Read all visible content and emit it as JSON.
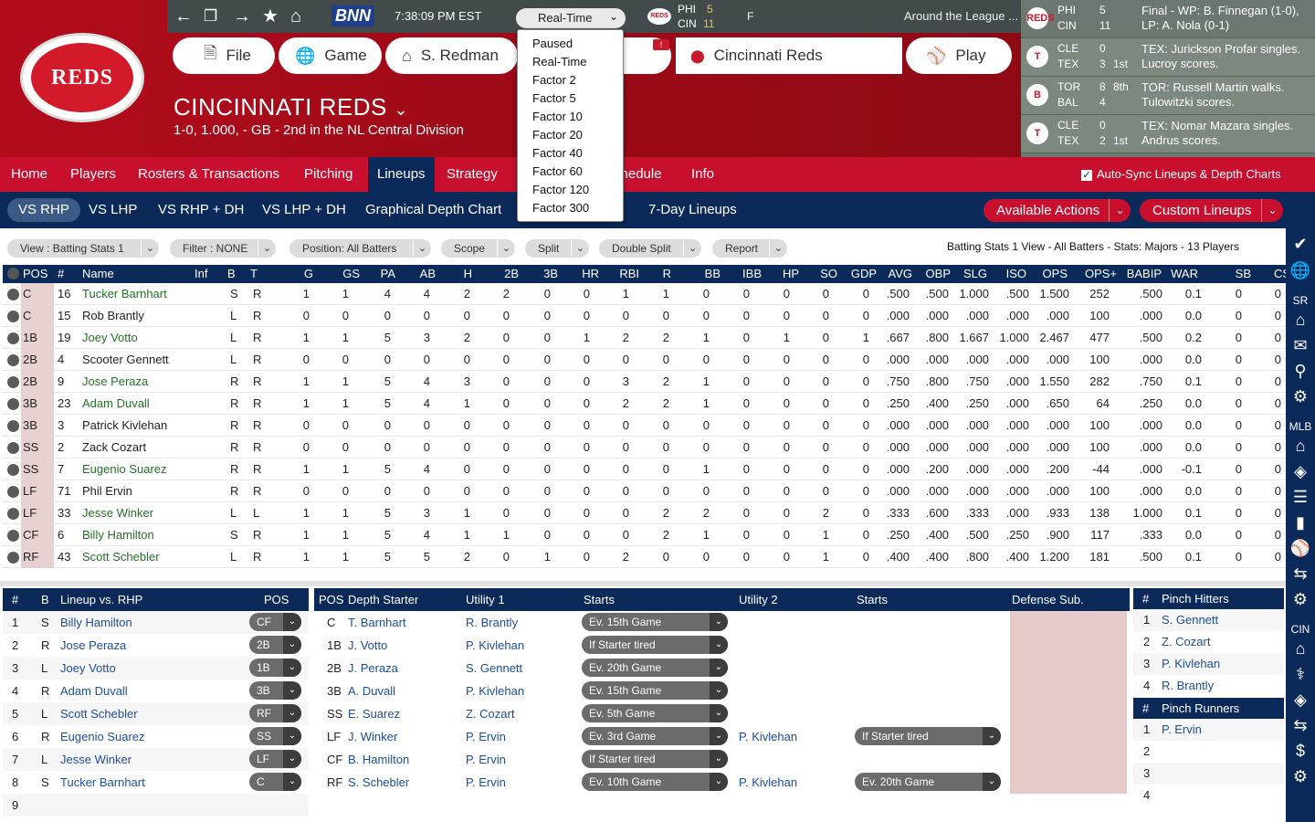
{
  "header": {
    "bnn": "BNN",
    "clock": "7:38:09  PM  EST",
    "speed": {
      "selected": "Real-Time",
      "options": [
        "Paused",
        "Real-Time",
        "Factor 2",
        "Factor 5",
        "Factor 10",
        "Factor 20",
        "Factor 40",
        "Factor 60",
        "Factor 120",
        "Factor 300"
      ]
    },
    "mini_score": {
      "team1": "PHI",
      "score1": "5",
      "team2": "CIN",
      "score2": "11",
      "status": "F"
    },
    "around": "Around the League ...",
    "team_logo": "REDS",
    "buttons": {
      "file": "File",
      "game": "Game",
      "manager": "S. Redman",
      "team": "Cincinnati Reds",
      "play": "Play"
    },
    "badge": "!",
    "team_title": "CINCINNATI REDS",
    "team_sub": "1-0, 1.000, - GB - 2nd in the NL Central Division"
  },
  "scores": [
    {
      "logo": "REDS",
      "t1": "PHI",
      "s1": "5",
      "t2": "CIN",
      "s2": "11",
      "inning": "",
      "text": "Final - WP: B. Finnegan (1-0), LP: A. Nola (0-1)"
    },
    {
      "logo": "T",
      "t1": "CLE",
      "s1": "0",
      "t2": "TEX",
      "s2": "3",
      "inning": "1st",
      "text": "TEX: Jurickson Profar singles. Lucroy scores."
    },
    {
      "logo": "B",
      "t1": "TOR",
      "s1": "8",
      "t2": "BAL",
      "s2": "4",
      "inning": "8th",
      "text": "TOR: Russell Martin walks. Tulowitzki scores."
    },
    {
      "logo": "T",
      "t1": "CLE",
      "s1": "0",
      "t2": "TEX",
      "s2": "2",
      "inning": "1st",
      "text": "TEX: Nomar Mazara singles. Andrus scores."
    }
  ],
  "mainnav": {
    "items": [
      "Home",
      "Players",
      "Rosters & Transactions",
      "Pitching",
      "Lineups",
      "Strategy",
      "Schedule",
      "Info"
    ],
    "autosync": "Auto-Sync Lineups & Depth Charts"
  },
  "subnav": {
    "items": [
      "VS RHP",
      "VS LHP",
      "VS RHP + DH",
      "VS LHP + DH",
      "Graphical Depth Chart",
      "7-Day Lineups"
    ],
    "actions": "Available Actions",
    "custom": "Custom Lineups"
  },
  "filters": {
    "view": "View : Batting Stats 1",
    "filter": "Filter : NONE",
    "position": "Position: All Batters",
    "scope": "Scope",
    "split": "Split",
    "double": "Double Split",
    "report": "Report",
    "desc": "Batting Stats 1 View - All Batters - Stats: Majors - 13 Players"
  },
  "grid": {
    "headers": [
      "POS",
      "#",
      "Name",
      "Inf",
      "B",
      "T",
      "G",
      "GS",
      "PA",
      "AB",
      "H",
      "2B",
      "3B",
      "HR",
      "RBI",
      "R",
      "BB",
      "IBB",
      "HP",
      "SO",
      "GDP",
      "AVG",
      "OBP",
      "SLG",
      "ISO",
      "OPS",
      "OPS+",
      "BABIP",
      "WAR",
      "SB",
      "CS"
    ],
    "rows": [
      [
        "C",
        "16",
        "Tucker Barnhart",
        "",
        "S",
        "R",
        "1",
        "1",
        "4",
        "4",
        "2",
        "2",
        "0",
        "0",
        "1",
        "1",
        "0",
        "0",
        "0",
        "0",
        "0",
        ".500",
        ".500",
        "1.000",
        ".500",
        "1.500",
        "252",
        ".500",
        "0.1",
        "0",
        "0"
      ],
      [
        "C",
        "15",
        "Rob Brantly",
        "",
        "L",
        "R",
        "0",
        "0",
        "0",
        "0",
        "0",
        "0",
        "0",
        "0",
        "0",
        "0",
        "0",
        "0",
        "0",
        "0",
        "0",
        ".000",
        ".000",
        ".000",
        ".000",
        ".000",
        "100",
        ".000",
        "0.0",
        "0",
        "0"
      ],
      [
        "1B",
        "19",
        "Joey Votto",
        "",
        "L",
        "R",
        "1",
        "1",
        "5",
        "3",
        "2",
        "0",
        "0",
        "1",
        "2",
        "2",
        "1",
        "0",
        "1",
        "0",
        "1",
        ".667",
        ".800",
        "1.667",
        "1.000",
        "2.467",
        "477",
        ".500",
        "0.2",
        "0",
        "0"
      ],
      [
        "2B",
        "4",
        "Scooter Gennett",
        "",
        "L",
        "R",
        "0",
        "0",
        "0",
        "0",
        "0",
        "0",
        "0",
        "0",
        "0",
        "0",
        "0",
        "0",
        "0",
        "0",
        "0",
        ".000",
        ".000",
        ".000",
        ".000",
        ".000",
        "100",
        ".000",
        "0.0",
        "0",
        "0"
      ],
      [
        "2B",
        "9",
        "Jose Peraza",
        "",
        "R",
        "R",
        "1",
        "1",
        "5",
        "4",
        "3",
        "0",
        "0",
        "0",
        "3",
        "2",
        "1",
        "0",
        "0",
        "0",
        "0",
        ".750",
        ".800",
        ".750",
        ".000",
        "1.550",
        "282",
        ".750",
        "0.1",
        "0",
        "0"
      ],
      [
        "3B",
        "23",
        "Adam Duvall",
        "",
        "R",
        "R",
        "1",
        "1",
        "5",
        "4",
        "1",
        "0",
        "0",
        "0",
        "2",
        "2",
        "1",
        "0",
        "0",
        "0",
        "0",
        ".250",
        ".400",
        ".250",
        ".000",
        ".650",
        "64",
        ".250",
        "0.0",
        "0",
        "0"
      ],
      [
        "3B",
        "3",
        "Patrick Kivlehan",
        "",
        "R",
        "R",
        "0",
        "0",
        "0",
        "0",
        "0",
        "0",
        "0",
        "0",
        "0",
        "0",
        "0",
        "0",
        "0",
        "0",
        "0",
        ".000",
        ".000",
        ".000",
        ".000",
        ".000",
        "100",
        ".000",
        "0.0",
        "0",
        "0"
      ],
      [
        "SS",
        "2",
        "Zack Cozart",
        "",
        "R",
        "R",
        "0",
        "0",
        "0",
        "0",
        "0",
        "0",
        "0",
        "0",
        "0",
        "0",
        "0",
        "0",
        "0",
        "0",
        "0",
        ".000",
        ".000",
        ".000",
        ".000",
        ".000",
        "100",
        ".000",
        "0.0",
        "0",
        "0"
      ],
      [
        "SS",
        "7",
        "Eugenio Suarez",
        "",
        "R",
        "R",
        "1",
        "1",
        "5",
        "4",
        "0",
        "0",
        "0",
        "0",
        "0",
        "0",
        "1",
        "0",
        "0",
        "0",
        "0",
        ".000",
        ".200",
        ".000",
        ".000",
        ".200",
        "-44",
        ".000",
        "-0.1",
        "0",
        "0"
      ],
      [
        "LF",
        "71",
        "Phil Ervin",
        "",
        "R",
        "R",
        "0",
        "0",
        "0",
        "0",
        "0",
        "0",
        "0",
        "0",
        "0",
        "0",
        "0",
        "0",
        "0",
        "0",
        "0",
        ".000",
        ".000",
        ".000",
        ".000",
        ".000",
        "100",
        ".000",
        "0.0",
        "0",
        "0"
      ],
      [
        "LF",
        "33",
        "Jesse Winker",
        "",
        "L",
        "L",
        "1",
        "1",
        "5",
        "3",
        "1",
        "0",
        "0",
        "0",
        "0",
        "2",
        "2",
        "0",
        "0",
        "2",
        "0",
        ".333",
        ".600",
        ".333",
        ".000",
        ".933",
        "138",
        "1.000",
        "0.1",
        "0",
        "0"
      ],
      [
        "CF",
        "6",
        "Billy Hamilton",
        "",
        "S",
        "R",
        "1",
        "1",
        "5",
        "4",
        "1",
        "1",
        "0",
        "0",
        "0",
        "2",
        "1",
        "0",
        "0",
        "1",
        "0",
        ".250",
        ".400",
        ".500",
        ".250",
        ".900",
        "117",
        ".333",
        "0.0",
        "0",
        "0"
      ],
      [
        "RF",
        "43",
        "Scott Schebler",
        "",
        "L",
        "R",
        "1",
        "1",
        "5",
        "5",
        "2",
        "0",
        "1",
        "0",
        "2",
        "0",
        "0",
        "0",
        "0",
        "1",
        "0",
        ".400",
        ".400",
        ".800",
        ".400",
        "1.200",
        "181",
        ".500",
        "0.1",
        "0",
        "0"
      ]
    ],
    "green_names": [
      0,
      2,
      4,
      5,
      8,
      10,
      11,
      12
    ]
  },
  "lineup": {
    "headers": {
      "num": "#",
      "b": "B",
      "name": "Lineup vs. RHP",
      "pos": "POS"
    },
    "rows": [
      {
        "n": "1",
        "b": "S",
        "name": "Billy Hamilton",
        "pos": "CF"
      },
      {
        "n": "2",
        "b": "R",
        "name": "Jose Peraza",
        "pos": "2B"
      },
      {
        "n": "3",
        "b": "L",
        "name": "Joey Votto",
        "pos": "1B"
      },
      {
        "n": "4",
        "b": "R",
        "name": "Adam Duvall",
        "pos": "3B"
      },
      {
        "n": "5",
        "b": "L",
        "name": "Scott Schebler",
        "pos": "RF"
      },
      {
        "n": "6",
        "b": "R",
        "name": "Eugenio Suarez",
        "pos": "SS"
      },
      {
        "n": "7",
        "b": "L",
        "name": "Jesse Winker",
        "pos": "LF"
      },
      {
        "n": "8",
        "b": "S",
        "name": "Tucker Barnhart",
        "pos": "C"
      },
      {
        "n": "9",
        "b": "",
        "name": "",
        "pos": ""
      }
    ]
  },
  "depth": {
    "headers": {
      "pos": "POS",
      "starter": "Depth Starter",
      "u1": "Utility 1",
      "starts1": "Starts",
      "u2": "Utility 2",
      "starts2": "Starts",
      "def": "Defense Sub."
    },
    "rows": [
      {
        "pos": "C",
        "starter": "T. Barnhart",
        "u1": "R. Brantly",
        "s1": "Ev. 15th Game",
        "u2": "",
        "s2": ""
      },
      {
        "pos": "1B",
        "starter": "J. Votto",
        "u1": "P. Kivlehan",
        "s1": "If Starter tired",
        "u2": "",
        "s2": ""
      },
      {
        "pos": "2B",
        "starter": "J. Peraza",
        "u1": "S. Gennett",
        "s1": "Ev. 20th Game",
        "u2": "",
        "s2": ""
      },
      {
        "pos": "3B",
        "starter": "A. Duvall",
        "u1": "P. Kivlehan",
        "s1": "Ev. 15th Game",
        "u2": "",
        "s2": ""
      },
      {
        "pos": "SS",
        "starter": "E. Suarez",
        "u1": "Z. Cozart",
        "s1": "Ev. 5th Game",
        "u2": "",
        "s2": ""
      },
      {
        "pos": "LF",
        "starter": "J. Winker",
        "u1": "P. Ervin",
        "s1": "Ev. 3rd Game",
        "u2": "P. Kivlehan",
        "s2": "If Starter tired"
      },
      {
        "pos": "CF",
        "starter": "B. Hamilton",
        "u1": "P. Ervin",
        "s1": "If Starter tired",
        "u2": "",
        "s2": ""
      },
      {
        "pos": "RF",
        "starter": "S. Schebler",
        "u1": "P. Ervin",
        "s1": "Ev. 10th Game",
        "u2": "P. Kivlehan",
        "s2": "Ev. 20th Game"
      }
    ]
  },
  "pinch": {
    "hitters_header": {
      "num": "#",
      "label": "Pinch Hitters"
    },
    "hitters": [
      {
        "n": "1",
        "name": "S. Gennett"
      },
      {
        "n": "2",
        "name": "Z. Cozart"
      },
      {
        "n": "3",
        "name": "P. Kivlehan"
      },
      {
        "n": "4",
        "name": "R. Brantly"
      }
    ],
    "runners_header": {
      "num": "#",
      "label": "Pinch Runners"
    },
    "runners": [
      {
        "n": "1",
        "name": "P. Ervin"
      },
      {
        "n": "2",
        "name": ""
      },
      {
        "n": "3",
        "name": ""
      },
      {
        "n": "4",
        "name": ""
      }
    ]
  },
  "sidebar": {
    "labels": [
      "SR",
      "MLB",
      "CIN"
    ]
  }
}
